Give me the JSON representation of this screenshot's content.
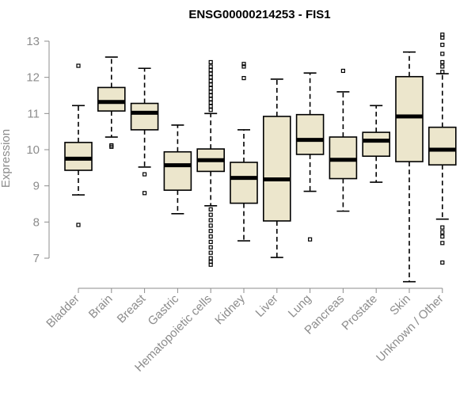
{
  "chart_data": {
    "type": "boxplot",
    "title": "ENSG00000214253 - FIS1",
    "xlabel": "",
    "ylabel": "Expression",
    "ylim": [
      6.2,
      13.3
    ],
    "yticks": [
      7,
      8,
      9,
      10,
      11,
      12,
      13
    ],
    "categories": [
      "Bladder",
      "Brain",
      "Breast",
      "Gastric",
      "Hematopoietic cells",
      "Kidney",
      "Liver",
      "Lung",
      "Pancreas",
      "Prostate",
      "Skin",
      "Unknown / Other"
    ],
    "boxes": [
      {
        "name": "Bladder",
        "whislo": 8.75,
        "q1": 9.43,
        "med": 9.75,
        "q3": 10.2,
        "whishi": 11.22,
        "fliers": [
          12.32,
          7.92
        ]
      },
      {
        "name": "Brain",
        "whislo": 10.35,
        "q1": 11.07,
        "med": 11.32,
        "q3": 11.72,
        "whishi": 12.56,
        "fliers": [
          10.08,
          10.12
        ]
      },
      {
        "name": "Breast",
        "whislo": 9.52,
        "q1": 10.55,
        "med": 11.02,
        "q3": 11.28,
        "whishi": 12.25,
        "fliers": [
          9.32,
          8.8
        ]
      },
      {
        "name": "Gastric",
        "whislo": 8.23,
        "q1": 8.88,
        "med": 9.57,
        "q3": 9.94,
        "whishi": 10.68,
        "fliers": []
      },
      {
        "name": "Hematopoietic cells",
        "whislo": 8.45,
        "q1": 9.4,
        "med": 9.71,
        "q3": 10.02,
        "whishi": 11.0,
        "fliers": [
          12.42,
          12.3,
          12.2,
          12.1,
          12.0,
          11.9,
          11.8,
          11.7,
          11.6,
          11.5,
          11.4,
          11.3,
          11.2,
          11.1,
          8.35,
          8.2,
          8.05,
          7.9,
          7.75,
          7.6,
          7.45,
          7.3,
          7.15,
          7.0,
          6.9,
          6.82
        ]
      },
      {
        "name": "Kidney",
        "whislo": 7.48,
        "q1": 8.52,
        "med": 9.22,
        "q3": 9.65,
        "whishi": 10.55,
        "fliers": [
          12.37,
          12.3,
          11.98
        ]
      },
      {
        "name": "Liver",
        "whislo": 7.02,
        "q1": 8.03,
        "med": 9.18,
        "q3": 10.92,
        "whishi": 11.95,
        "fliers": []
      },
      {
        "name": "Lung",
        "whislo": 8.85,
        "q1": 9.87,
        "med": 10.27,
        "q3": 10.97,
        "whishi": 12.12,
        "fliers": [
          7.52
        ]
      },
      {
        "name": "Pancreas",
        "whislo": 8.3,
        "q1": 9.2,
        "med": 9.72,
        "q3": 10.35,
        "whishi": 11.6,
        "fliers": [
          12.18
        ]
      },
      {
        "name": "Prostate",
        "whislo": 9.1,
        "q1": 9.82,
        "med": 10.25,
        "q3": 10.48,
        "whishi": 11.22,
        "fliers": []
      },
      {
        "name": "Skin",
        "whislo": 6.35,
        "q1": 9.67,
        "med": 10.92,
        "q3": 12.02,
        "whishi": 12.7,
        "fliers": []
      },
      {
        "name": "Unknown / Other",
        "whislo": 8.08,
        "q1": 9.58,
        "med": 10.0,
        "q3": 10.62,
        "whishi": 12.1,
        "fliers": [
          13.18,
          13.1,
          12.9,
          12.65,
          12.42,
          12.3,
          12.15,
          7.85,
          7.72,
          7.6,
          7.42,
          6.88
        ]
      }
    ]
  },
  "colors": {
    "box_fill": "#ece6cc",
    "box_stroke": "#000000",
    "axis": "#8c8c8c",
    "text_muted": "#8c8c8c",
    "title": "#000000"
  }
}
